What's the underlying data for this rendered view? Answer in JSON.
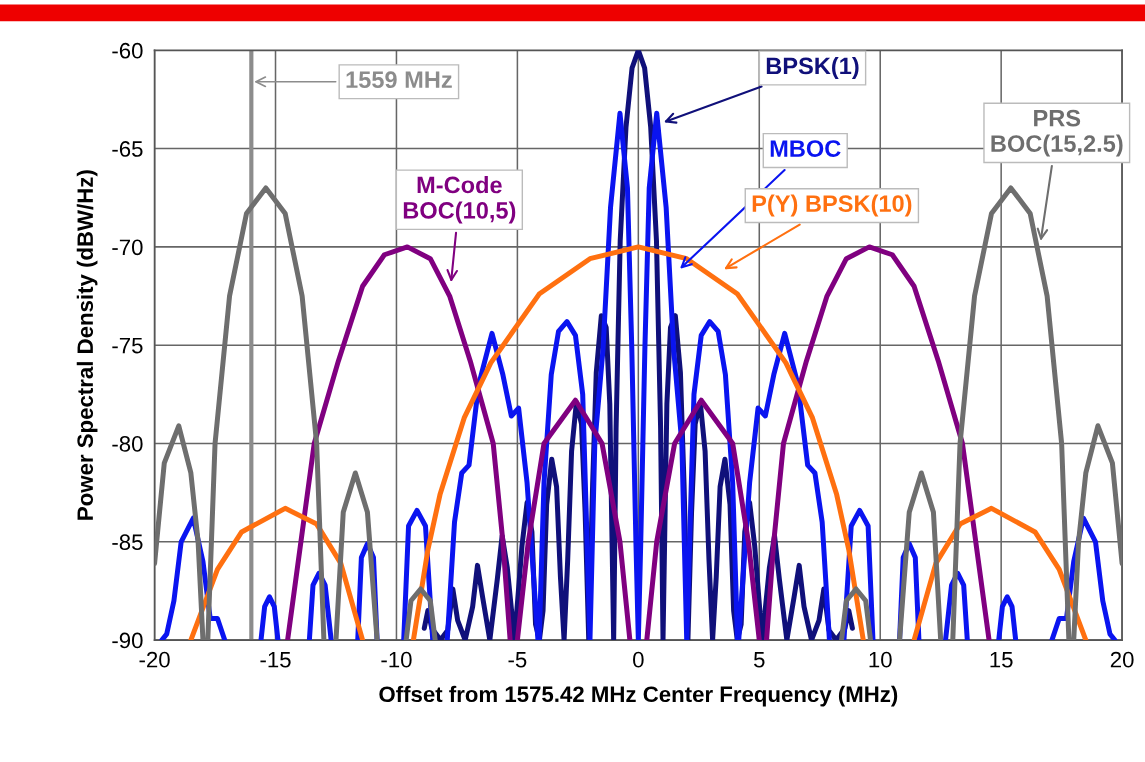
{
  "chart_data": {
    "type": "line",
    "xlabel": "Offset from 1575.42 MHz Center Frequency (MHz)",
    "ylabel": "Power Spectral Density (dBW/Hz)",
    "xlim": [
      -20,
      20
    ],
    "ylim": [
      -90,
      -60
    ],
    "xticks": [
      -20,
      -15,
      -10,
      -5,
      0,
      5,
      10,
      15,
      20
    ],
    "yticks": [
      -90,
      -85,
      -80,
      -75,
      -70,
      -65,
      -60
    ],
    "grid": true,
    "legend": false,
    "marker": "none",
    "line_style": "solid",
    "ref_lines": [
      {
        "axis": "x",
        "value": -16,
        "label": "1559 MHz",
        "color": "#8c8c8c"
      }
    ],
    "series": [
      {
        "name": "BPSK(1)",
        "color": "#10107a",
        "x": [
          -8.85,
          -8.7,
          -8.54,
          -8.18,
          -7.88,
          -7.67,
          -7.47,
          -7.16,
          -6.85,
          -6.65,
          -6.44,
          -6.14,
          -5.83,
          -5.63,
          -5.42,
          -5.12,
          -4.81,
          -4.6,
          -4.4,
          -4.25,
          -4.09,
          -3.94,
          -3.79,
          -3.58,
          -3.38,
          -3.22,
          -3.07,
          -2.92,
          -2.76,
          -2.56,
          -2.35,
          -2.2,
          -2.05,
          -1.89,
          -1.74,
          -1.53,
          -1.33,
          -1.18,
          -1.02,
          -0.92,
          -0.75,
          -0.51,
          -0.26,
          0,
          0.26,
          0.51,
          0.75,
          0.92,
          1.02,
          1.18,
          1.33,
          1.53,
          1.74,
          1.89,
          2.05,
          2.2,
          2.35,
          2.56,
          2.76,
          2.92,
          3.07,
          3.22,
          3.38,
          3.58,
          3.79,
          3.94,
          4.09,
          4.25,
          4.4,
          4.6,
          4.81,
          5.12,
          5.42,
          5.63,
          5.83,
          6.14,
          6.44,
          6.65,
          6.85,
          7.16,
          7.47,
          7.67,
          7.88,
          8.18,
          8.54,
          8.7,
          8.85
        ],
        "values": [
          -89.4,
          -88.5,
          -89.4,
          -90,
          -89.5,
          -87.4,
          -89.0,
          -90,
          -88.3,
          -86.2,
          -87.8,
          -90,
          -86.9,
          -84.7,
          -86.3,
          -90,
          -85.2,
          -83.0,
          -84.5,
          -89.2,
          -90,
          -88.5,
          -83.1,
          -80.8,
          -82.2,
          -86.8,
          -90,
          -85.9,
          -80.4,
          -77.9,
          -79.0,
          -83.5,
          -90,
          -82.1,
          -76.4,
          -73.5,
          -74.1,
          -78.0,
          -90,
          -79.2,
          -69.7,
          -63.9,
          -60.9,
          -60,
          -60.9,
          -63.9,
          -69.7,
          -79.2,
          -90,
          -78.0,
          -74.1,
          -73.5,
          -76.4,
          -82.1,
          -90,
          -83.5,
          -79.0,
          -77.9,
          -80.4,
          -85.9,
          -90,
          -86.8,
          -82.2,
          -80.8,
          -83.1,
          -88.5,
          -90,
          -89.2,
          -84.5,
          -83.0,
          -85.2,
          -90,
          -86.3,
          -84.7,
          -86.9,
          -90,
          -87.8,
          -86.2,
          -88.3,
          -90,
          -89.0,
          -87.4,
          -89.5,
          -90,
          -89.4,
          -88.5,
          -89.4
        ]
      },
      {
        "name": "MBOC",
        "color": "#0a14f0",
        "x": [
          -19.7,
          -19.5,
          -19.2,
          -18.9,
          -18.4,
          -18.0,
          -17.7,
          -17.4,
          -17.1,
          -16.4,
          -15.6,
          -15.45,
          -15.25,
          -15.05,
          -14.9,
          -14.3,
          -13.6,
          -13.45,
          -13.2,
          -12.95,
          -12.7,
          -12.2,
          -11.6,
          -11.45,
          -11.2,
          -10.95,
          -10.8,
          -10.2,
          -9.7,
          -9.5,
          -9.15,
          -8.8,
          -8.5,
          -8.2,
          -7.9,
          -7.6,
          -7.3,
          -7.0,
          -6.6,
          -6.05,
          -5.6,
          -5.25,
          -4.95,
          -4.6,
          -4.15,
          -4.1,
          -3.9,
          -3.6,
          -3.3,
          -2.95,
          -2.6,
          -2.3,
          -2.0,
          -1.8,
          -1.46,
          -1.15,
          -0.76,
          -0.45,
          -0.27,
          -0.1,
          0,
          0.1,
          0.27,
          0.45,
          0.76,
          1.15,
          1.46,
          1.8,
          2.0,
          2.3,
          2.6,
          2.95,
          3.3,
          3.6,
          3.9,
          4.1,
          4.15,
          4.6,
          4.95,
          5.25,
          5.6,
          6.05,
          6.6,
          7.0,
          7.3,
          7.6,
          7.9,
          8.2,
          8.5,
          8.8,
          9.15,
          9.5,
          9.7,
          10.2,
          10.8,
          10.95,
          11.2,
          11.45,
          11.6,
          12.2,
          12.7,
          12.95,
          13.2,
          13.45,
          13.6,
          14.3,
          14.9,
          15.05,
          15.25,
          15.45,
          15.6,
          16.4,
          17.1,
          17.4,
          17.7,
          18.0,
          18.4,
          18.9,
          19.2,
          19.5,
          19.7
        ],
        "values": [
          -90,
          -89.7,
          -88.0,
          -85.0,
          -83.8,
          -86.0,
          -88.9,
          -88.9,
          -90,
          null,
          -90,
          -88.3,
          -87.8,
          -88.3,
          -90,
          null,
          -90,
          -87.2,
          -86.6,
          -87.2,
          -90,
          null,
          -90,
          -85.8,
          -85.1,
          -85.8,
          -90,
          null,
          -90,
          -84.2,
          -83.4,
          -84.2,
          -90,
          null,
          -90,
          -84.0,
          -81.5,
          -81.1,
          -77.0,
          -74.4,
          -76.5,
          -78.6,
          -78.2,
          -82.0,
          -90,
          -90,
          -82.0,
          -76.5,
          -74.3,
          -73.8,
          -74.5,
          -77.5,
          -90,
          -80.0,
          -75.2,
          -68.0,
          -63.2,
          -67.0,
          -75.2,
          -85.0,
          -90,
          -85.0,
          -75.2,
          -67.0,
          -63.2,
          -68.0,
          -75.2,
          -80.0,
          -90,
          -77.5,
          -74.5,
          -73.8,
          -74.3,
          -76.5,
          -82.0,
          -90,
          -90,
          -82.0,
          -78.2,
          -78.6,
          -76.5,
          -74.4,
          -77.0,
          -81.1,
          -81.5,
          -84.0,
          -90,
          null,
          -90,
          -84.2,
          -83.4,
          -84.2,
          -90,
          null,
          -90,
          -85.8,
          -85.1,
          -85.8,
          -90,
          null,
          -90,
          -87.2,
          -86.6,
          -87.2,
          -90,
          null,
          -90,
          -88.3,
          -87.8,
          -88.3,
          -90,
          null,
          -90,
          -88.9,
          -88.9,
          -86.0,
          -83.8,
          -85.0,
          -88.0,
          -89.7,
          -90
        ]
      },
      {
        "name": "M-Code\nBOC(10,5)",
        "color": "#800080",
        "x": [
          -14.5,
          -13.4,
          -12.4,
          -11.4,
          -10.5,
          -9.55,
          -8.6,
          -7.8,
          -6.95,
          -6.0,
          -5.6,
          -5.3,
          -5.15,
          -5.0,
          -4.55,
          -3.9,
          -2.6,
          -1.5,
          -0.76,
          -0.35,
          0,
          0.35,
          0.76,
          1.5,
          2.6,
          3.9,
          4.55,
          5.0,
          5.15,
          5.3,
          5.6,
          6.0,
          6.95,
          7.8,
          8.6,
          9.55,
          10.5,
          11.4,
          12.4,
          13.4,
          14.5
        ],
        "values": [
          -90,
          -80,
          -75.8,
          -72,
          -70.4,
          -70,
          -70.6,
          -72.5,
          -75.8,
          -80,
          -85,
          -90,
          null,
          -90,
          -85,
          -80,
          -77.8,
          -80,
          -85,
          -90,
          null,
          -90,
          -85,
          -80,
          -77.8,
          -80,
          -85,
          -90,
          null,
          -90,
          -85,
          -80,
          -75.8,
          -72.5,
          -70.6,
          -70,
          -70.4,
          -72,
          -75.8,
          -80,
          -90
        ]
      },
      {
        "name": "P(Y) BPSK(10)",
        "color": "#ff7010",
        "x": [
          -18.5,
          -17.4,
          -16.4,
          -14.6,
          -13.3,
          -12.3,
          -11.4,
          -10.4,
          -9.3,
          -8.7,
          -8.2,
          -7.2,
          -6.1,
          -4.1,
          -2.0,
          0,
          2.0,
          4.1,
          6.1,
          7.2,
          8.2,
          8.7,
          9.3,
          10.4,
          11.4,
          12.3,
          13.3,
          14.6,
          16.4,
          17.4,
          18.5
        ],
        "values": [
          -90,
          -86.4,
          -84.5,
          -83.3,
          -84.1,
          -86.1,
          -90,
          null,
          -90,
          -85.4,
          -82.6,
          -78.7,
          -75.9,
          -72.4,
          -70.6,
          -70,
          -70.6,
          -72.4,
          -75.9,
          -78.7,
          -82.6,
          -85.4,
          -90,
          null,
          -90,
          -86.1,
          -84.1,
          -83.3,
          -84.5,
          -86.4,
          -90
        ]
      },
      {
        "name": "PRS\nBOC(15,2.5)",
        "color": "#6e6e6e",
        "x": [
          -20,
          -19.6,
          -19.0,
          -18.5,
          -18.2,
          -18.0,
          -17.9,
          -17.8,
          -17.5,
          -16.9,
          -16.2,
          -15.4,
          -14.6,
          -13.9,
          -13.3,
          -13.0,
          -12.75,
          -12.5,
          -12.2,
          -11.7,
          -11.2,
          -10.8,
          -10.2,
          -9.6,
          -9.4,
          -9.0,
          -8.6,
          -8.4,
          0,
          8.4,
          8.6,
          9.0,
          9.4,
          9.6,
          10.2,
          10.8,
          11.2,
          11.7,
          12.2,
          12.5,
          12.75,
          13.0,
          13.3,
          13.9,
          14.6,
          15.4,
          16.2,
          16.9,
          17.5,
          17.8,
          17.9,
          18.0,
          18.2,
          18.5,
          19.0,
          19.6,
          20
        ],
        "values": [
          -86.1,
          -81.0,
          -79.1,
          -81.5,
          -85.0,
          -90,
          null,
          -90,
          -80,
          -72.5,
          -68.3,
          -67,
          -68.3,
          -72.5,
          -80,
          -90,
          null,
          -90,
          -83.5,
          -81.5,
          -83.5,
          -90,
          null,
          -90,
          -88.0,
          -87.4,
          -88.0,
          -90,
          null,
          -90,
          -88.0,
          -87.4,
          -88.0,
          -90,
          null,
          -90,
          -83.5,
          -81.5,
          -83.5,
          -90,
          null,
          -90,
          -80,
          -72.5,
          -68.3,
          -67,
          -68.3,
          -72.5,
          -80,
          -90,
          null,
          -90,
          -85.0,
          -81.5,
          -79.1,
          -81.0,
          -86.1
        ]
      }
    ]
  }
}
